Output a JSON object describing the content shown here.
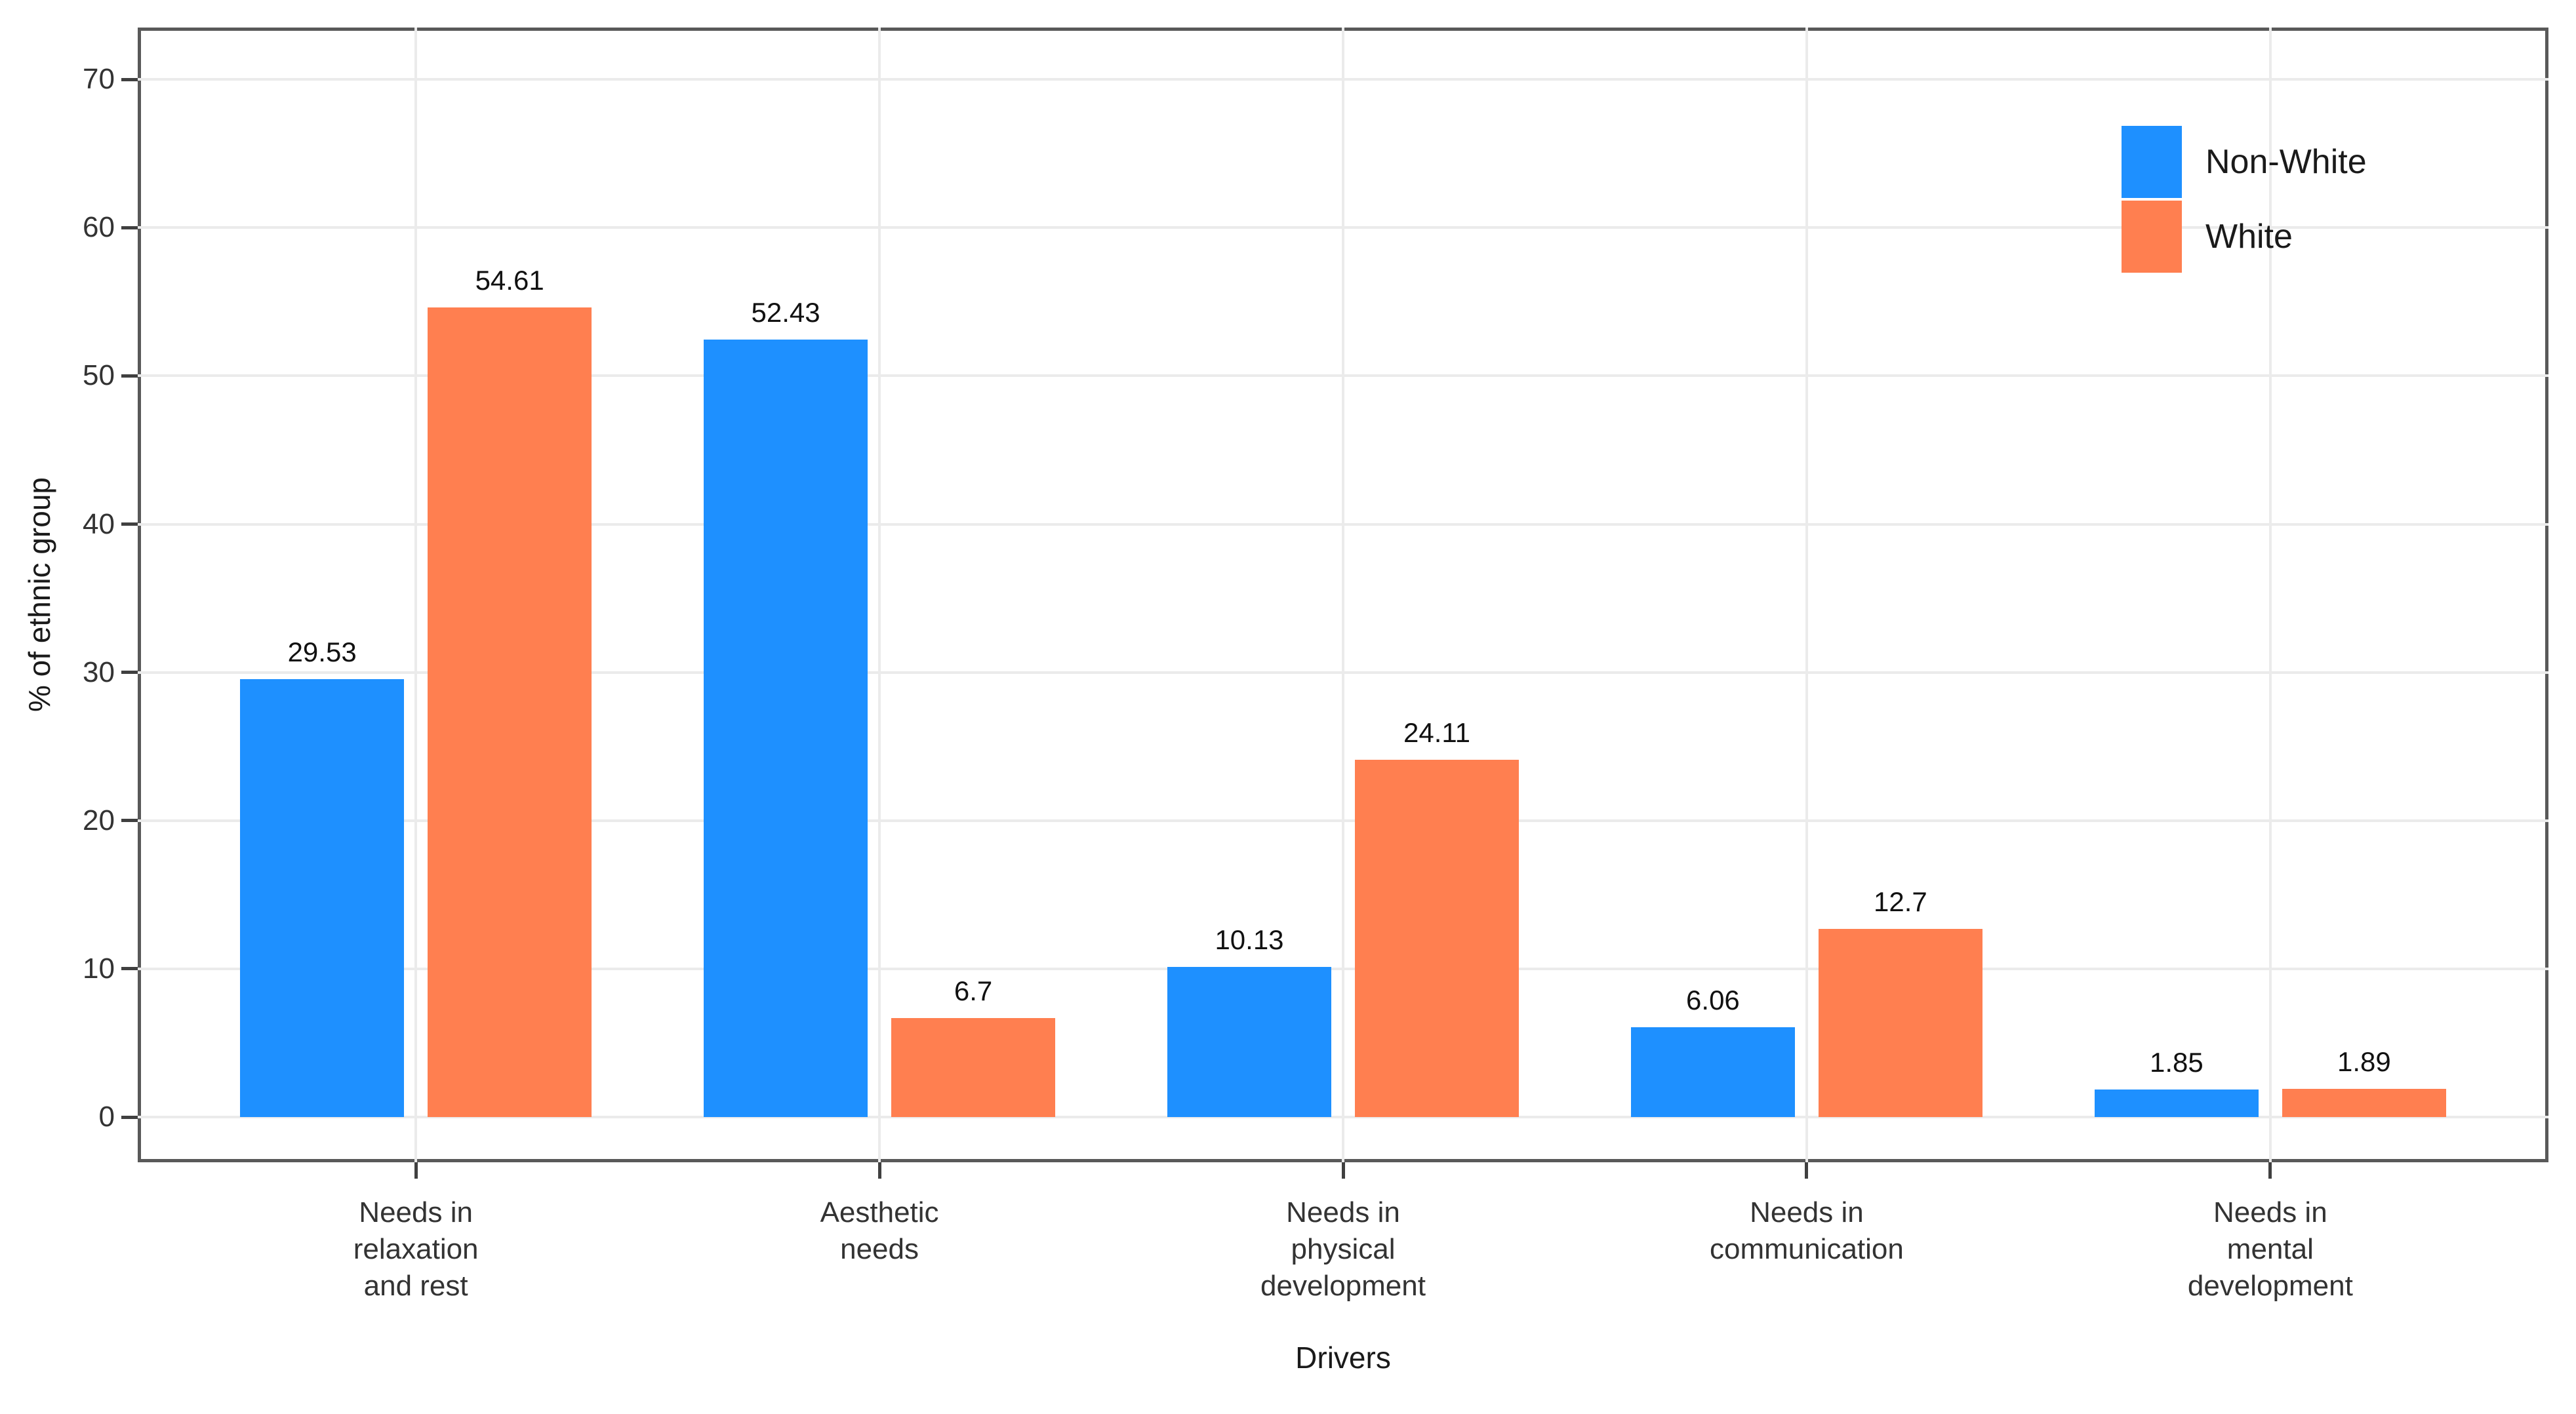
{
  "chart_data": {
    "type": "bar",
    "categories": [
      "Needs in\nrelaxation\nand rest",
      "Aesthetic\nneeds",
      "Needs in\nphysical\ndevelopment",
      "Needs in\ncommunication",
      "Needs in\nmental\ndevelopment"
    ],
    "series": [
      {
        "name": "Non-White",
        "color": "#1E90FF",
        "values": [
          29.53,
          52.43,
          10.13,
          6.06,
          1.85
        ]
      },
      {
        "name": "White",
        "color": "#FF7F50",
        "values": [
          54.61,
          6.7,
          24.11,
          12.7,
          1.89
        ]
      }
    ],
    "value_labels": [
      [
        "29.53",
        "52.43",
        "10.13",
        "6.06",
        "1.85"
      ],
      [
        "54.61",
        "6.7",
        "24.11",
        "12.7",
        "1.89"
      ]
    ],
    "title": "",
    "xlabel": "Drivers",
    "ylabel": "% of ethnic group",
    "yticks": [
      0,
      10,
      20,
      30,
      40,
      50,
      60,
      70
    ],
    "ytick_labels": [
      "0",
      "10",
      "20",
      "30",
      "40",
      "50",
      "60",
      "70"
    ],
    "ylim": [
      -3.05,
      73.5
    ],
    "grid": true,
    "legend_position": "top-right-inside",
    "colors": {
      "panel_border": "#595959",
      "gridline": "#ebebeb",
      "tick_mark": "#404040",
      "tick_text": "#333333",
      "label_text": "#111111",
      "background": "#ffffff"
    }
  }
}
